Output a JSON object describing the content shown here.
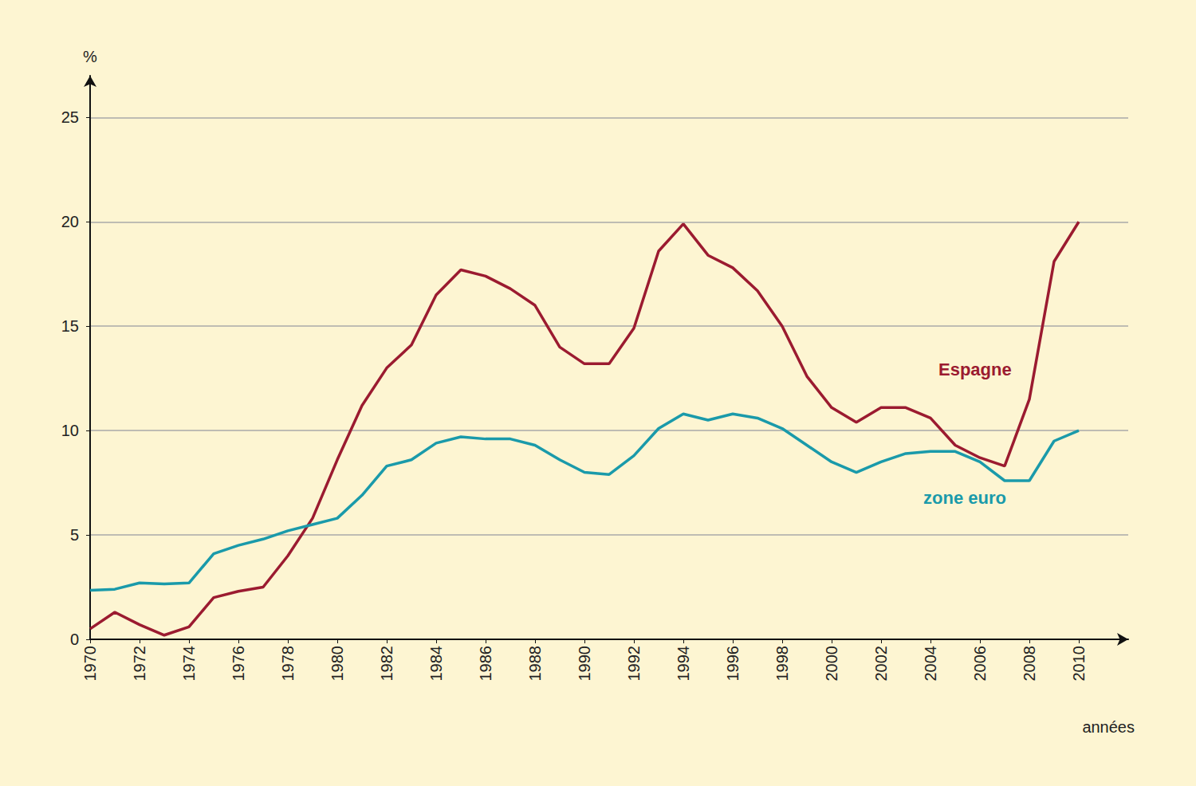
{
  "chart_data": {
    "type": "line",
    "x_label": "années",
    "y_label": "%",
    "x": [
      1970,
      1971,
      1972,
      1973,
      1974,
      1975,
      1976,
      1977,
      1978,
      1979,
      1980,
      1981,
      1982,
      1983,
      1984,
      1985,
      1986,
      1987,
      1988,
      1989,
      1990,
      1991,
      1992,
      1993,
      1994,
      1995,
      1996,
      1997,
      1998,
      1999,
      2000,
      2001,
      2002,
      2003,
      2004,
      2005,
      2006,
      2007,
      2008,
      2009,
      2010
    ],
    "series": [
      {
        "name": "Espagne",
        "color": "#9b1b30",
        "values": [
          0.5,
          1.3,
          0.7,
          0.2,
          0.6,
          2.0,
          2.3,
          2.5,
          4.0,
          5.8,
          8.6,
          11.2,
          13.0,
          14.1,
          16.5,
          17.7,
          17.4,
          16.8,
          16.0,
          14.0,
          13.2,
          13.2,
          14.9,
          18.6,
          19.9,
          18.4,
          17.8,
          16.7,
          15.0,
          12.6,
          11.1,
          10.4,
          11.1,
          11.1,
          10.6,
          9.3,
          8.7,
          8.3,
          11.5,
          18.1,
          20.0
        ]
      },
      {
        "name": "zone euro",
        "color": "#1a9aaa",
        "values": [
          2.35,
          2.4,
          2.7,
          2.65,
          2.7,
          4.1,
          4.5,
          4.8,
          5.2,
          5.5,
          5.8,
          6.9,
          8.3,
          8.6,
          9.4,
          9.7,
          9.6,
          9.6,
          9.3,
          8.6,
          8.0,
          7.9,
          8.8,
          10.1,
          10.8,
          10.5,
          10.8,
          10.6,
          10.1,
          9.3,
          8.5,
          8.0,
          8.5,
          8.9,
          9.0,
          9.0,
          8.5,
          7.6,
          7.6,
          9.5,
          10.0
        ]
      }
    ],
    "xlim": [
      1970,
      2012
    ],
    "xticks": [
      1970,
      1972,
      1974,
      1976,
      1978,
      1980,
      1982,
      1984,
      1986,
      1988,
      1990,
      1992,
      1994,
      1996,
      1998,
      2000,
      2002,
      2004,
      2006,
      2008,
      2010
    ],
    "ylim": [
      0,
      27
    ],
    "yticks": [
      0,
      5,
      10,
      15,
      20,
      25
    ],
    "grid": true
  }
}
